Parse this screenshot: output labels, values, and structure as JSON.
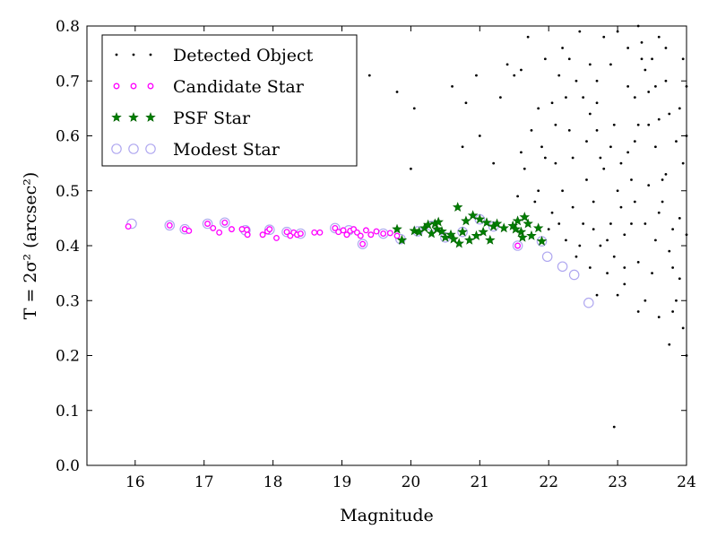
{
  "chart_data": {
    "type": "scatter",
    "xlabel": "Magnitude",
    "ylabel": "T = 2σ² (arcsec²)",
    "xlim": [
      15.3,
      24.0
    ],
    "ylim": [
      0.0,
      0.8
    ],
    "xticks": [
      16,
      17,
      18,
      19,
      20,
      21,
      22,
      23,
      24
    ],
    "yticks": [
      0.0,
      0.1,
      0.2,
      0.3,
      0.4,
      0.5,
      0.6,
      0.7,
      0.8
    ],
    "grid": false,
    "legend_position": "top-left",
    "colors": {
      "detected": "#000000",
      "candidate": "#ff00ff",
      "psf": "#008000",
      "modest": "#b0a8f0"
    },
    "series": [
      {
        "name": "Detected Object",
        "marker": "dot",
        "points": [
          [
            19.4,
            0.71
          ],
          [
            19.8,
            0.68
          ],
          [
            20.05,
            0.65
          ],
          [
            20.0,
            0.54
          ],
          [
            20.6,
            0.69
          ],
          [
            20.8,
            0.66
          ],
          [
            20.75,
            0.58
          ],
          [
            21.0,
            0.6
          ],
          [
            21.2,
            0.55
          ],
          [
            21.3,
            0.67
          ],
          [
            21.5,
            0.71
          ],
          [
            21.7,
            0.78
          ],
          [
            20.95,
            0.71
          ],
          [
            22.95,
            0.07
          ],
          [
            21.6,
            0.72
          ],
          [
            21.4,
            0.73
          ],
          [
            21.65,
            0.54
          ],
          [
            21.9,
            0.58
          ],
          [
            21.8,
            0.48
          ],
          [
            21.55,
            0.49
          ],
          [
            22.0,
            0.43
          ],
          [
            22.2,
            0.5
          ],
          [
            22.1,
            0.55
          ],
          [
            22.3,
            0.61
          ],
          [
            22.05,
            0.66
          ],
          [
            22.4,
            0.7
          ],
          [
            22.2,
            0.76
          ],
          [
            22.45,
            0.79
          ],
          [
            22.6,
            0.73
          ],
          [
            22.7,
            0.66
          ],
          [
            22.55,
            0.59
          ],
          [
            22.8,
            0.54
          ],
          [
            22.65,
            0.48
          ],
          [
            22.9,
            0.44
          ],
          [
            22.75,
            0.4
          ],
          [
            22.85,
            0.35
          ],
          [
            23.0,
            0.31
          ],
          [
            22.95,
            0.38
          ],
          [
            23.1,
            0.42
          ],
          [
            23.05,
            0.47
          ],
          [
            23.2,
            0.52
          ],
          [
            23.15,
            0.57
          ],
          [
            23.3,
            0.62
          ],
          [
            23.25,
            0.67
          ],
          [
            23.4,
            0.72
          ],
          [
            23.35,
            0.77
          ],
          [
            23.5,
            0.74
          ],
          [
            23.45,
            0.68
          ],
          [
            23.6,
            0.63
          ],
          [
            23.55,
            0.58
          ],
          [
            23.7,
            0.53
          ],
          [
            23.65,
            0.48
          ],
          [
            23.8,
            0.43
          ],
          [
            23.75,
            0.39
          ],
          [
            23.9,
            0.34
          ],
          [
            23.85,
            0.3
          ],
          [
            23.95,
            0.25
          ],
          [
            24.0,
            0.2
          ],
          [
            23.9,
            0.45
          ],
          [
            23.95,
            0.55
          ],
          [
            23.9,
            0.65
          ],
          [
            23.95,
            0.74
          ],
          [
            23.7,
            0.7
          ],
          [
            23.6,
            0.78
          ],
          [
            23.3,
            0.8
          ],
          [
            23.0,
            0.79
          ],
          [
            22.8,
            0.78
          ],
          [
            22.6,
            0.64
          ],
          [
            22.35,
            0.56
          ],
          [
            22.5,
            0.44
          ],
          [
            22.25,
            0.41
          ],
          [
            22.4,
            0.38
          ],
          [
            22.6,
            0.36
          ],
          [
            22.7,
            0.31
          ],
          [
            23.1,
            0.33
          ],
          [
            23.3,
            0.37
          ],
          [
            23.5,
            0.35
          ],
          [
            23.4,
            0.3
          ],
          [
            23.6,
            0.27
          ],
          [
            23.75,
            0.22
          ],
          [
            23.8,
            0.28
          ],
          [
            23.55,
            0.41
          ],
          [
            23.2,
            0.44
          ],
          [
            23.0,
            0.5
          ],
          [
            22.9,
            0.58
          ],
          [
            22.7,
            0.61
          ],
          [
            22.5,
            0.67
          ],
          [
            22.3,
            0.74
          ],
          [
            22.15,
            0.71
          ],
          [
            21.95,
            0.74
          ],
          [
            21.85,
            0.65
          ],
          [
            21.75,
            0.61
          ],
          [
            21.6,
            0.57
          ],
          [
            22.05,
            0.46
          ],
          [
            22.15,
            0.44
          ],
          [
            22.35,
            0.47
          ],
          [
            22.55,
            0.52
          ],
          [
            22.75,
            0.56
          ],
          [
            22.95,
            0.62
          ],
          [
            23.15,
            0.69
          ],
          [
            23.35,
            0.74
          ],
          [
            23.55,
            0.69
          ],
          [
            23.75,
            0.64
          ],
          [
            23.85,
            0.59
          ],
          [
            23.65,
            0.52
          ],
          [
            23.45,
            0.51
          ],
          [
            23.25,
            0.48
          ],
          [
            23.05,
            0.55
          ],
          [
            23.25,
            0.59
          ],
          [
            23.45,
            0.62
          ],
          [
            23.6,
            0.46
          ],
          [
            23.4,
            0.44
          ],
          [
            23.8,
            0.36
          ],
          [
            23.3,
            0.28
          ],
          [
            23.1,
            0.36
          ],
          [
            22.85,
            0.41
          ],
          [
            22.65,
            0.43
          ],
          [
            22.45,
            0.4
          ],
          [
            24.0,
            0.42
          ],
          [
            24.0,
            0.6
          ],
          [
            24.0,
            0.69
          ],
          [
            23.7,
            0.76
          ],
          [
            23.15,
            0.76
          ],
          [
            22.9,
            0.73
          ],
          [
            22.7,
            0.7
          ],
          [
            22.25,
            0.67
          ],
          [
            22.1,
            0.62
          ],
          [
            21.95,
            0.56
          ],
          [
            21.85,
            0.5
          ]
        ]
      },
      {
        "name": "Candidate Star",
        "marker": "circle",
        "points": [
          [
            15.9,
            0.435
          ],
          [
            16.5,
            0.437
          ],
          [
            16.72,
            0.43
          ],
          [
            16.78,
            0.427
          ],
          [
            17.05,
            0.44
          ],
          [
            17.13,
            0.432
          ],
          [
            17.22,
            0.424
          ],
          [
            17.3,
            0.442
          ],
          [
            17.4,
            0.43
          ],
          [
            17.55,
            0.43
          ],
          [
            17.63,
            0.42
          ],
          [
            17.62,
            0.429
          ],
          [
            17.85,
            0.42
          ],
          [
            17.92,
            0.426
          ],
          [
            17.95,
            0.43
          ],
          [
            18.05,
            0.414
          ],
          [
            18.2,
            0.425
          ],
          [
            18.25,
            0.418
          ],
          [
            18.3,
            0.424
          ],
          [
            18.35,
            0.42
          ],
          [
            18.4,
            0.422
          ],
          [
            18.6,
            0.424
          ],
          [
            18.68,
            0.424
          ],
          [
            18.9,
            0.432
          ],
          [
            18.95,
            0.425
          ],
          [
            19.02,
            0.428
          ],
          [
            19.07,
            0.42
          ],
          [
            19.12,
            0.427
          ],
          [
            19.17,
            0.43
          ],
          [
            19.22,
            0.424
          ],
          [
            19.27,
            0.418
          ],
          [
            19.3,
            0.403
          ],
          [
            19.35,
            0.428
          ],
          [
            19.42,
            0.42
          ],
          [
            19.5,
            0.426
          ],
          [
            19.6,
            0.422
          ],
          [
            19.7,
            0.423
          ],
          [
            19.8,
            0.418
          ],
          [
            21.55,
            0.4
          ]
        ]
      },
      {
        "name": "PSF Star",
        "marker": "star",
        "points": [
          [
            19.8,
            0.43
          ],
          [
            19.87,
            0.41
          ],
          [
            20.05,
            0.427
          ],
          [
            20.12,
            0.425
          ],
          [
            20.2,
            0.432
          ],
          [
            20.25,
            0.438
          ],
          [
            20.3,
            0.422
          ],
          [
            20.35,
            0.44
          ],
          [
            20.38,
            0.43
          ],
          [
            20.4,
            0.443
          ],
          [
            20.45,
            0.426
          ],
          [
            20.5,
            0.415
          ],
          [
            20.58,
            0.42
          ],
          [
            20.62,
            0.412
          ],
          [
            20.68,
            0.47
          ],
          [
            20.7,
            0.404
          ],
          [
            20.75,
            0.425
          ],
          [
            20.8,
            0.445
          ],
          [
            20.85,
            0.41
          ],
          [
            20.9,
            0.455
          ],
          [
            20.95,
            0.418
          ],
          [
            21.0,
            0.448
          ],
          [
            21.05,
            0.425
          ],
          [
            21.1,
            0.442
          ],
          [
            21.15,
            0.41
          ],
          [
            21.2,
            0.435
          ],
          [
            21.25,
            0.44
          ],
          [
            21.35,
            0.432
          ],
          [
            21.48,
            0.436
          ],
          [
            21.52,
            0.43
          ],
          [
            21.55,
            0.445
          ],
          [
            21.6,
            0.425
          ],
          [
            21.62,
            0.415
          ],
          [
            21.65,
            0.452
          ],
          [
            21.7,
            0.44
          ],
          [
            21.75,
            0.418
          ],
          [
            21.85,
            0.432
          ],
          [
            21.9,
            0.408
          ]
        ]
      },
      {
        "name": "Modest Star",
        "marker": "open-circle",
        "points": [
          [
            15.95,
            0.44
          ],
          [
            16.5,
            0.437
          ],
          [
            16.72,
            0.43
          ],
          [
            17.05,
            0.44
          ],
          [
            17.3,
            0.442
          ],
          [
            17.6,
            0.428
          ],
          [
            17.95,
            0.429
          ],
          [
            18.2,
            0.425
          ],
          [
            18.4,
            0.422
          ],
          [
            18.9,
            0.432
          ],
          [
            19.1,
            0.428
          ],
          [
            19.3,
            0.403
          ],
          [
            19.6,
            0.422
          ],
          [
            19.85,
            0.412
          ],
          [
            20.1,
            0.426
          ],
          [
            20.3,
            0.436
          ],
          [
            20.5,
            0.415
          ],
          [
            20.75,
            0.425
          ],
          [
            21.0,
            0.448
          ],
          [
            21.2,
            0.435
          ],
          [
            21.55,
            0.4
          ],
          [
            21.9,
            0.408
          ],
          [
            21.98,
            0.38
          ],
          [
            22.2,
            0.362
          ],
          [
            22.37,
            0.347
          ],
          [
            22.58,
            0.296
          ]
        ]
      }
    ]
  }
}
